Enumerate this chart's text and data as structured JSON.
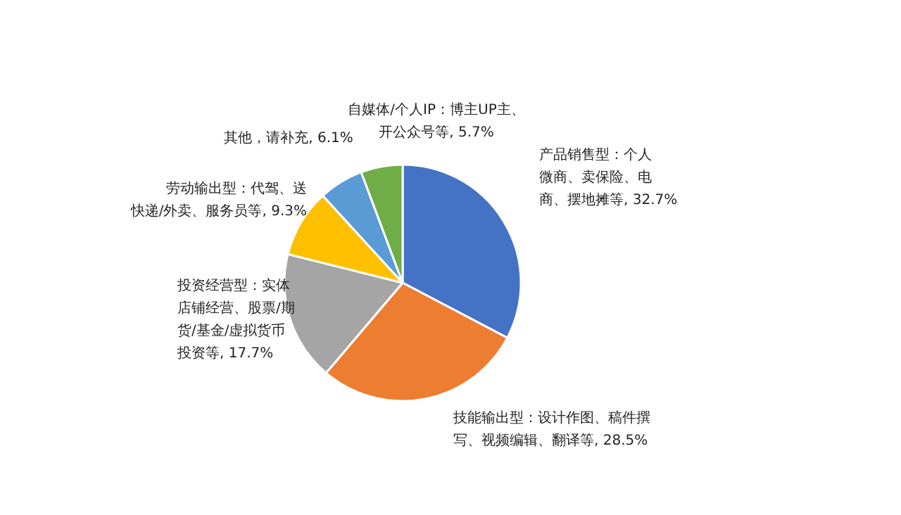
{
  "chart_data": {
    "type": "pie",
    "categories": [
      "产品销售型：个人微商、卖保险、电商、摆地摊等",
      "技能输出型：设计作图、稿件撰写、视频编辑、翻译等",
      "投资经营型：实体店铺经营、股票/期货/基金/虚拟货币投资等",
      "劳动输出型：代驾、送快递/外卖、服务员等",
      "其他，请补充",
      "自媒体/个人IP：博主UP主、开公众号等"
    ],
    "values": [
      32.7,
      28.5,
      17.7,
      9.3,
      6.1,
      5.7
    ],
    "value_labels": [
      "32.7%",
      "28.5%",
      "17.7%",
      "9.3%",
      "6.1%",
      "5.7%"
    ],
    "colors": [
      "#4472c4",
      "#ed7d31",
      "#a5a5a5",
      "#ffc000",
      "#5b9bd5",
      "#70ad47"
    ]
  }
}
